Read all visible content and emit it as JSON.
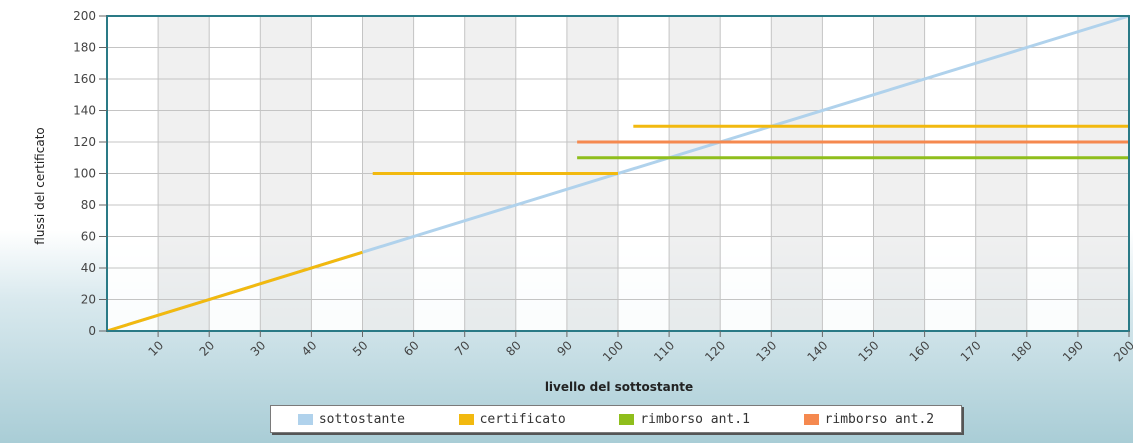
{
  "chart_data": {
    "type": "line",
    "title": "",
    "xlabel": "livello del sottostante",
    "ylabel": "flussi del certificato",
    "xlim": [
      0,
      200
    ],
    "ylim": [
      0,
      200
    ],
    "x_ticks": [
      10,
      20,
      30,
      40,
      50,
      60,
      70,
      80,
      90,
      100,
      110,
      120,
      130,
      140,
      150,
      160,
      170,
      180,
      190,
      200
    ],
    "y_ticks": [
      0,
      20,
      40,
      60,
      80,
      100,
      120,
      140,
      160,
      180,
      200
    ],
    "grid": true,
    "legend_position": "bottom",
    "series": [
      {
        "name": "sottostante",
        "color": "#b0d2ec",
        "segments": [
          [
            [
              0,
              0
            ],
            [
              200,
              200
            ]
          ]
        ]
      },
      {
        "name": "certificato",
        "color": "#f2b90f",
        "segments": [
          [
            [
              0,
              0
            ],
            [
              50,
              50
            ]
          ],
          [
            [
              52,
              100
            ],
            [
              100,
              100
            ]
          ],
          [
            [
              103,
              130
            ],
            [
              200,
              130
            ]
          ]
        ]
      },
      {
        "name": "rimborso ant.1",
        "color": "#8fbe1c",
        "segments": [
          [
            [
              92,
              110
            ],
            [
              200,
              110
            ]
          ]
        ]
      },
      {
        "name": "rimborso ant.2",
        "color": "#f5894f",
        "segments": [
          [
            [
              92,
              120
            ],
            [
              200,
              120
            ]
          ]
        ]
      }
    ]
  }
}
